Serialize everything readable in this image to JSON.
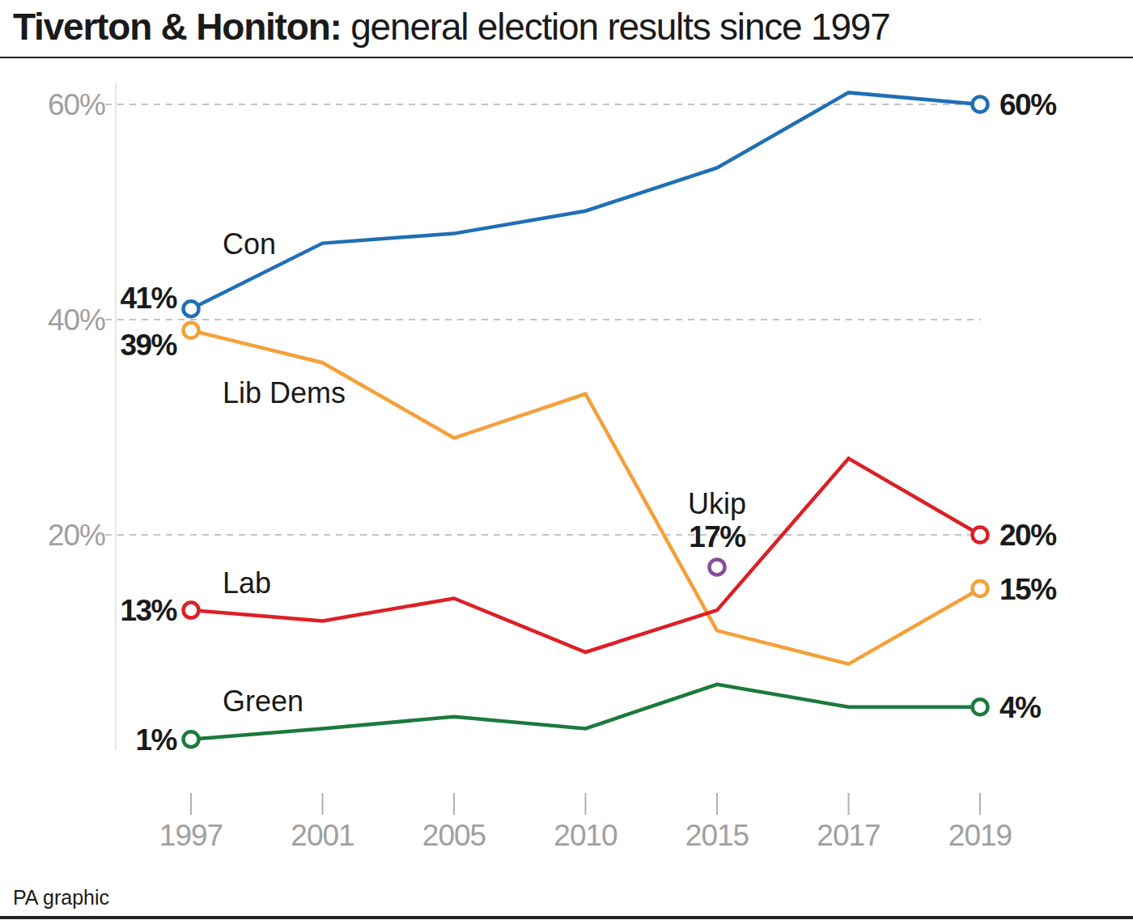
{
  "chart_data": {
    "type": "line",
    "title": "Tiverton & Honiton: general election results since 1997",
    "source": "PA graphic",
    "categories": [
      "1997",
      "2001",
      "2005",
      "2010",
      "2015",
      "2017",
      "2019"
    ],
    "ylim": [
      0,
      62
    ],
    "yticks": [
      {
        "value": 20,
        "label": "20%"
      },
      {
        "value": 40,
        "label": "40%"
      },
      {
        "value": 60,
        "label": "60%"
      }
    ],
    "grid": true,
    "marker": "circle",
    "series": [
      {
        "name": "Con",
        "color": "#1f6fb4",
        "values": [
          41,
          47.1,
          48,
          50.1,
          54.1,
          61.1,
          60
        ],
        "value_labels": [
          "41%",
          null,
          null,
          null,
          null,
          null,
          "60%"
        ]
      },
      {
        "name": "Lib Dems",
        "color": "#f4a03a",
        "values": [
          39,
          36,
          29,
          33.1,
          11.1,
          8,
          15
        ],
        "value_labels": [
          "39%",
          null,
          null,
          null,
          null,
          null,
          "15%"
        ]
      },
      {
        "name": "Lab",
        "color": "#dd1f26",
        "values": [
          13,
          12,
          14.1,
          9.1,
          13,
          27.1,
          20
        ],
        "value_labels": [
          "13%",
          null,
          null,
          null,
          null,
          null,
          "20%"
        ]
      },
      {
        "name": "Green",
        "color": "#1b7a3c",
        "values": [
          1,
          2,
          3.1,
          2,
          6.1,
          4,
          4
        ],
        "value_labels": [
          "1%",
          null,
          null,
          null,
          null,
          null,
          "4%"
        ]
      },
      {
        "name": "Ukip",
        "color": "#8b4a9c",
        "values": [
          null,
          null,
          null,
          null,
          17,
          null,
          null
        ],
        "value_labels": [
          null,
          null,
          null,
          null,
          "17%",
          null,
          null
        ]
      }
    ]
  }
}
